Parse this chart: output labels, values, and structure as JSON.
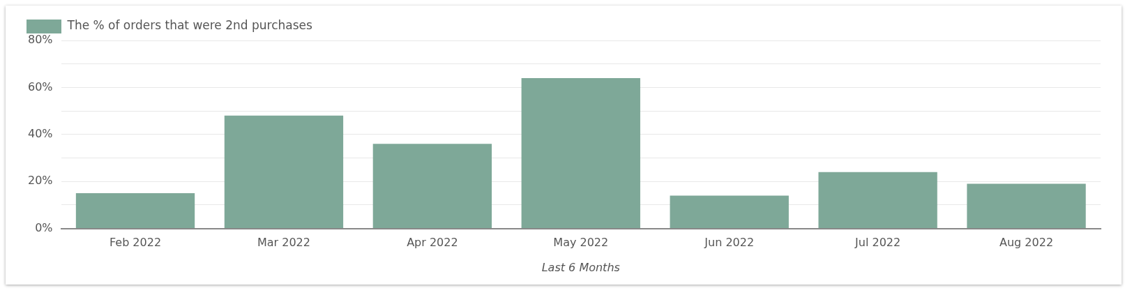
{
  "chart_data": {
    "type": "bar",
    "xlabel": "Last 6 Months",
    "categories": [
      "Feb 2022",
      "Mar 2022",
      "Apr 2022",
      "May 2022",
      "Jun 2022",
      "Jul 2022",
      "Aug 2022"
    ],
    "series": [
      {
        "name": "The % of orders that were 2nd purchases",
        "color": "#7ea898",
        "values": [
          15,
          48,
          36,
          64,
          14,
          24,
          19
        ]
      }
    ],
    "ylim": [
      0,
      80
    ],
    "yticks": [
      {
        "value": 0,
        "label": "0%"
      },
      {
        "value": 10,
        "label": null
      },
      {
        "value": 20,
        "label": "20%"
      },
      {
        "value": 30,
        "label": null
      },
      {
        "value": 40,
        "label": "40%"
      },
      {
        "value": 50,
        "label": null
      },
      {
        "value": 60,
        "label": "60%"
      },
      {
        "value": 70,
        "label": null
      },
      {
        "value": 80,
        "label": "80%"
      }
    ],
    "grid": "y",
    "legend": "top left"
  }
}
